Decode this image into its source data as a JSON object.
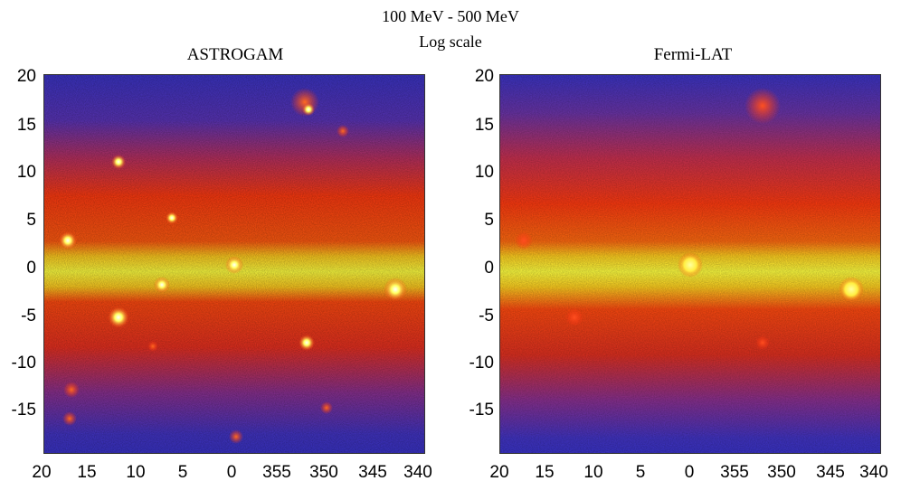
{
  "figure": {
    "title_line1": "100 MeV - 500 MeV",
    "title_line2": "Log scale"
  },
  "panels": [
    {
      "title": "ASTROGAM"
    },
    {
      "title": "Fermi-LAT"
    }
  ],
  "axes": {
    "y_ticks": [
      "20",
      "15",
      "10",
      "5",
      "0",
      "-5",
      "-10",
      "-15"
    ],
    "x_ticks": [
      "20",
      "15",
      "10",
      "5",
      "0",
      "355",
      "350",
      "345",
      "340"
    ]
  },
  "colors": {
    "background_low": "#3a33c8",
    "mid": "#e03018",
    "high": "#ff3a00",
    "peak": "#ffff40"
  }
}
